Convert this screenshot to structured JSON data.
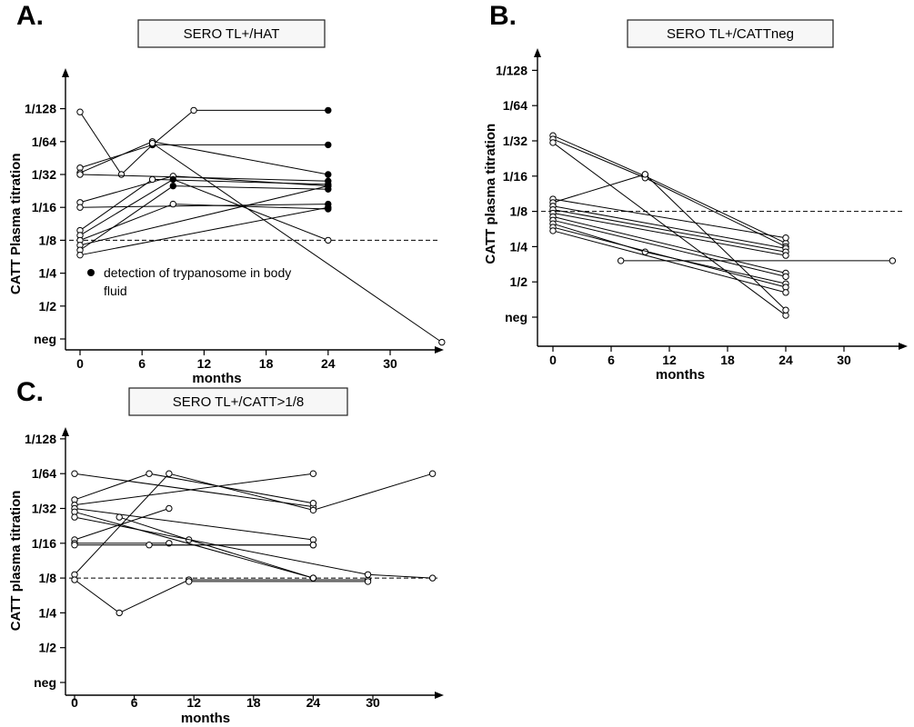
{
  "chart_data": [
    {
      "type": "line",
      "panel_label": "A.",
      "title": "SERO TL+/HAT",
      "xlabel": "months",
      "ylabel": "CATT Plasma titration",
      "x_ticks": [
        0,
        6,
        12,
        18,
        24,
        30
      ],
      "x_tick_labels": [
        "0",
        "6",
        "12",
        "18",
        "24",
        "30"
      ],
      "xlim": [
        -1,
        36
      ],
      "y_categories": [
        "neg",
        "1/2",
        "1/4",
        "1/8",
        "1/16",
        "1/32",
        "1/64",
        "1/128"
      ],
      "ylim": [
        -0.2,
        7.3
      ],
      "reference_line": {
        "y": 3,
        "label": "1/8",
        "style": "dashed"
      },
      "legend": {
        "marker": "filled-circle",
        "label": "detection of trypanosome in body fluid",
        "placement": "bottom-left"
      },
      "series": [
        {
          "points": [
            {
              "x": 0,
              "y": 6.9,
              "filled": false
            },
            {
              "x": 4,
              "y": 5.0,
              "filled": false
            },
            {
              "x": 7,
              "y": 5.9,
              "filled": true
            },
            {
              "x": 24,
              "y": 5.9,
              "filled": true
            }
          ]
        },
        {
          "points": [
            {
              "x": 0,
              "y": 5.2,
              "filled": false
            },
            {
              "x": 7,
              "y": 5.9,
              "filled": true
            },
            {
              "x": 11,
              "y": 6.95,
              "filled": false
            },
            {
              "x": 24,
              "y": 6.95,
              "filled": true
            }
          ]
        },
        {
          "points": [
            {
              "x": 0,
              "y": 5.05,
              "filled": false
            },
            {
              "x": 7,
              "y": 6.0,
              "filled": false
            },
            {
              "x": 24,
              "y": 5.0,
              "filled": true
            }
          ]
        },
        {
          "points": [
            {
              "x": 0,
              "y": 5.0,
              "filled": false
            },
            {
              "x": 24,
              "y": 4.8,
              "filled": true
            }
          ]
        },
        {
          "points": [
            {
              "x": 0,
              "y": 4.15,
              "filled": false
            },
            {
              "x": 9,
              "y": 4.95,
              "filled": false
            },
            {
              "x": 24,
              "y": 4.65,
              "filled": true
            }
          ]
        },
        {
          "points": [
            {
              "x": 0,
              "y": 4.0,
              "filled": false
            },
            {
              "x": 24,
              "y": 4.1,
              "filled": true
            }
          ]
        },
        {
          "points": [
            {
              "x": 0,
              "y": 3.3,
              "filled": false
            },
            {
              "x": 7,
              "y": 4.85,
              "filled": false
            },
            {
              "x": 24,
              "y": 4.7,
              "filled": true
            }
          ]
        },
        {
          "points": [
            {
              "x": 0,
              "y": 3.15,
              "filled": false
            },
            {
              "x": 9,
              "y": 4.85,
              "filled": true
            },
            {
              "x": 24,
              "y": 3.0,
              "filled": false
            }
          ]
        },
        {
          "points": [
            {
              "x": 0,
              "y": 3.0,
              "filled": false
            },
            {
              "x": 9,
              "y": 4.1,
              "filled": false
            },
            {
              "x": 24,
              "y": 3.95,
              "filled": true
            }
          ]
        },
        {
          "points": [
            {
              "x": 0,
              "y": 2.85,
              "filled": false
            },
            {
              "x": 24,
              "y": 4.65,
              "filled": true
            }
          ]
        },
        {
          "points": [
            {
              "x": 0,
              "y": 2.7,
              "filled": false
            },
            {
              "x": 9,
              "y": 4.65,
              "filled": true
            },
            {
              "x": 24,
              "y": 4.55,
              "filled": true
            }
          ]
        },
        {
          "points": [
            {
              "x": 0,
              "y": 2.55,
              "filled": false
            },
            {
              "x": 24,
              "y": 4.0,
              "filled": true
            }
          ]
        },
        {
          "points": [
            {
              "x": 7,
              "y": 5.95,
              "filled": false
            },
            {
              "x": 35,
              "y": -0.1,
              "filled": false
            }
          ]
        }
      ]
    },
    {
      "type": "line",
      "panel_label": "B.",
      "title": "SERO TL+/CATTneg",
      "xlabel": "months",
      "ylabel": "CATT plasma titration",
      "x_ticks": [
        0,
        6,
        12,
        18,
        24,
        30
      ],
      "x_tick_labels": [
        "0",
        "6",
        "12",
        "18",
        "24",
        "30"
      ],
      "xlim": [
        -1,
        36
      ],
      "y_categories": [
        "neg",
        "1/2",
        "1/4",
        "1/8",
        "1/16",
        "1/32",
        "1/64",
        "1/128"
      ],
      "ylim": [
        -0.2,
        7.3
      ],
      "reference_line": {
        "y": 3,
        "label": "1/8",
        "style": "dashed"
      },
      "series": [
        {
          "points": [
            {
              "x": 0,
              "y": 5.15
            },
            {
              "x": 9.5,
              "y": 4.0
            },
            {
              "x": 24,
              "y": 2.1
            }
          ]
        },
        {
          "points": [
            {
              "x": 0,
              "y": 5.05
            },
            {
              "x": 9.5,
              "y": 3.95
            },
            {
              "x": 24,
              "y": 2.0
            }
          ]
        },
        {
          "points": [
            {
              "x": 0,
              "y": 4.95
            },
            {
              "x": 24,
              "y": 0.05
            }
          ]
        },
        {
          "points": [
            {
              "x": 0,
              "y": 3.35
            },
            {
              "x": 24,
              "y": 2.25
            }
          ]
        },
        {
          "points": [
            {
              "x": 0,
              "y": 3.25
            },
            {
              "x": 9.5,
              "y": 4.05
            },
            {
              "x": 24,
              "y": 0.2
            }
          ]
        },
        {
          "points": [
            {
              "x": 0,
              "y": 3.15
            },
            {
              "x": 24,
              "y": 1.95
            }
          ]
        },
        {
          "points": [
            {
              "x": 0,
              "y": 3.05
            },
            {
              "x": 24,
              "y": 1.85
            }
          ]
        },
        {
          "points": [
            {
              "x": 0,
              "y": 2.95
            },
            {
              "x": 24,
              "y": 1.75
            }
          ]
        },
        {
          "points": [
            {
              "x": 0,
              "y": 2.85
            },
            {
              "x": 24,
              "y": 1.25
            }
          ]
        },
        {
          "points": [
            {
              "x": 0,
              "y": 2.75
            },
            {
              "x": 24,
              "y": 1.15
            }
          ]
        },
        {
          "points": [
            {
              "x": 0,
              "y": 2.65
            },
            {
              "x": 9.5,
              "y": 1.85
            },
            {
              "x": 24,
              "y": 0.95
            }
          ]
        },
        {
          "points": [
            {
              "x": 0,
              "y": 2.55
            },
            {
              "x": 24,
              "y": 0.85
            }
          ]
        },
        {
          "points": [
            {
              "x": 0,
              "y": 2.45
            },
            {
              "x": 24,
              "y": 0.7
            }
          ]
        },
        {
          "points": [
            {
              "x": 7,
              "y": 1.6
            },
            {
              "x": 35,
              "y": 1.6
            }
          ]
        }
      ]
    },
    {
      "type": "line",
      "panel_label": "C.",
      "title": "SERO TL+/CATT>1/8",
      "xlabel": "months",
      "ylabel": "CATT plasma titration",
      "x_ticks": [
        0,
        6,
        12,
        18,
        24,
        30
      ],
      "x_tick_labels": [
        "0",
        "6",
        "12",
        "18",
        "24",
        "30"
      ],
      "xlim": [
        -1,
        36
      ],
      "y_categories": [
        "neg",
        "1/2",
        "1/4",
        "1/8",
        "1/16",
        "1/32",
        "1/64",
        "1/128"
      ],
      "ylim": [
        -0.2,
        7.3
      ],
      "reference_line": {
        "y": 3,
        "label": "1/8",
        "style": "dashed"
      },
      "series": [
        {
          "points": [
            {
              "x": 0,
              "y": 6.0
            },
            {
              "x": 24,
              "y": 5.05
            }
          ]
        },
        {
          "points": [
            {
              "x": 0,
              "y": 5.25
            },
            {
              "x": 7.5,
              "y": 6.0
            },
            {
              "x": 24,
              "y": 5.15
            }
          ]
        },
        {
          "points": [
            {
              "x": 0,
              "y": 5.1
            },
            {
              "x": 24,
              "y": 6.0
            }
          ]
        },
        {
          "points": [
            {
              "x": 0,
              "y": 5.0
            },
            {
              "x": 24,
              "y": 4.1
            }
          ]
        },
        {
          "points": [
            {
              "x": 0,
              "y": 4.9
            },
            {
              "x": 24,
              "y": 3.0
            }
          ]
        },
        {
          "points": [
            {
              "x": 0,
              "y": 4.1
            },
            {
              "x": 9.5,
              "y": 5.0
            }
          ]
        },
        {
          "points": [
            {
              "x": 0,
              "y": 4.0
            },
            {
              "x": 9.5,
              "y": 4.0
            }
          ]
        },
        {
          "points": [
            {
              "x": 0,
              "y": 3.95
            },
            {
              "x": 24,
              "y": 3.95
            }
          ]
        },
        {
          "points": [
            {
              "x": 0,
              "y": 3.1
            },
            {
              "x": 9.5,
              "y": 6.0
            },
            {
              "x": 24,
              "y": 4.95
            },
            {
              "x": 36,
              "y": 6.0
            }
          ]
        },
        {
          "points": [
            {
              "x": 0,
              "y": 2.95
            },
            {
              "x": 4.5,
              "y": 2.0
            },
            {
              "x": 11.5,
              "y": 2.95
            },
            {
              "x": 29.5,
              "y": 2.95
            }
          ]
        },
        {
          "points": [
            {
              "x": 4.5,
              "y": 4.75
            },
            {
              "x": 11.5,
              "y": 4.1
            },
            {
              "x": 24,
              "y": 3.0
            }
          ]
        },
        {
          "points": [
            {
              "x": 11.5,
              "y": 2.9
            },
            {
              "x": 29.5,
              "y": 2.9
            }
          ]
        },
        {
          "points": [
            {
              "x": 7.5,
              "y": 3.95
            },
            {
              "x": 24,
              "y": 3.95
            }
          ]
        },
        {
          "points": [
            {
              "x": 0,
              "y": 4.75
            },
            {
              "x": 29.5,
              "y": 3.1
            },
            {
              "x": 36,
              "y": 3.0
            }
          ]
        }
      ]
    }
  ]
}
